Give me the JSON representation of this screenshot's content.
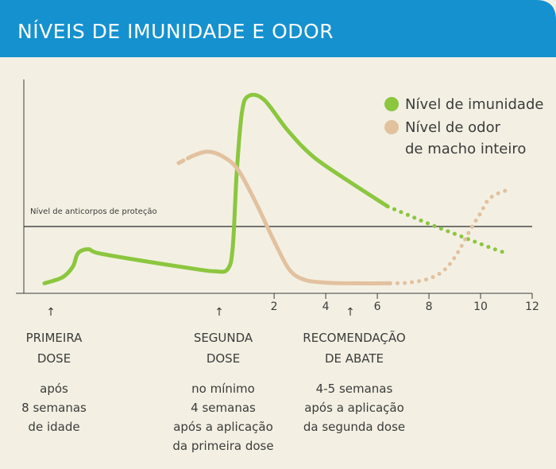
{
  "header": {
    "title": "NÍVEIS DE IMUNIDADE E ODOR"
  },
  "colors": {
    "header_bg": "#1591cf",
    "background": "#f3f0e3",
    "immunity": "#8cc63f",
    "odor": "#e2c19f",
    "axis": "#3b3b3b"
  },
  "legend": [
    {
      "lines": [
        "Nível de imunidade"
      ],
      "color": "#8cc63f"
    },
    {
      "lines": [
        "Nível de odor",
        "de macho inteiro"
      ],
      "color": "#e2c19f"
    }
  ],
  "reference_line": {
    "label": "Nível de anticorpos de proteção",
    "y": 1.0
  },
  "chart_data": {
    "type": "line",
    "x_ticks": [
      2,
      4,
      6,
      8,
      10,
      12
    ],
    "xlim": [
      -7.7,
      12
    ],
    "ylim": [
      0,
      3.2
    ],
    "grid": false,
    "legend_position": "top-right",
    "series": [
      {
        "name": "Nível de imunidade",
        "color": "#8cc63f",
        "solid": [
          [
            -6.9,
            0.15
          ],
          [
            -6.2,
            0.24
          ],
          [
            -5.8,
            0.4
          ],
          [
            -5.6,
            0.6
          ],
          [
            -5.2,
            0.66
          ],
          [
            -4.8,
            0.6
          ],
          [
            -3.0,
            0.48
          ],
          [
            -1.0,
            0.36
          ],
          [
            -0.3,
            0.33
          ],
          [
            0.2,
            0.36
          ],
          [
            0.4,
            0.7
          ],
          [
            0.55,
            1.8
          ],
          [
            0.75,
            2.7
          ],
          [
            1.0,
            2.95
          ],
          [
            1.6,
            2.9
          ],
          [
            2.5,
            2.45
          ],
          [
            3.5,
            2.05
          ],
          [
            4.8,
            1.7
          ],
          [
            6.4,
            1.3
          ]
        ],
        "dotted": [
          [
            6.4,
            1.3
          ],
          [
            7.2,
            1.17
          ],
          [
            8.0,
            1.04
          ],
          [
            8.8,
            0.92
          ],
          [
            9.6,
            0.8
          ],
          [
            10.4,
            0.68
          ],
          [
            11.0,
            0.6
          ]
        ]
      },
      {
        "name": "Nível de odor de macho inteiro",
        "color": "#e2c19f",
        "dashed": [
          [
            -1.7,
            1.95
          ],
          [
            -1.2,
            2.05
          ]
        ],
        "solid": [
          [
            -1.2,
            2.05
          ],
          [
            -0.6,
            2.12
          ],
          [
            0,
            2.05
          ],
          [
            0.6,
            1.85
          ],
          [
            1.3,
            1.35
          ],
          [
            2.0,
            0.78
          ],
          [
            2.6,
            0.35
          ],
          [
            3.2,
            0.2
          ],
          [
            4.0,
            0.16
          ],
          [
            5.0,
            0.15
          ],
          [
            6.5,
            0.15
          ]
        ],
        "dotted": [
          [
            6.5,
            0.15
          ],
          [
            7.2,
            0.16
          ],
          [
            8.0,
            0.22
          ],
          [
            8.6,
            0.35
          ],
          [
            9.1,
            0.6
          ],
          [
            9.6,
            0.95
          ],
          [
            10.0,
            1.2
          ],
          [
            10.3,
            1.4
          ],
          [
            10.7,
            1.5
          ],
          [
            11.1,
            1.55
          ]
        ]
      }
    ]
  },
  "annotations": [
    {
      "title": [
        "PRIMEIRA",
        "DOSE"
      ],
      "body": [
        "após",
        "8 semanas",
        "de idade"
      ]
    },
    {
      "title": [
        "SEGUNDA",
        "DOSE"
      ],
      "body": [
        "no mínimo",
        "4 semanas",
        "após a aplicação",
        "da primeira dose"
      ]
    },
    {
      "title": [
        "RECOMENDAÇÃO",
        "DE ABATE"
      ],
      "body": [
        "4-5 semanas",
        "após a aplicação",
        "da segunda dose"
      ]
    }
  ],
  "arrow_glyph": "↑"
}
